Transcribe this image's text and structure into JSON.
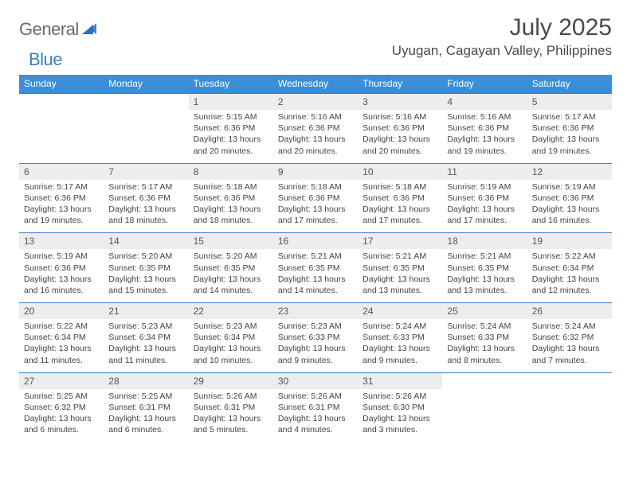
{
  "logo": {
    "text_general": "General",
    "text_blue": "Blue",
    "mark_color": "#2d6fb8"
  },
  "title": {
    "month": "July 2025",
    "location": "Uyugan, Cagayan Valley, Philippines"
  },
  "colors": {
    "header_bg": "#3a8fd6",
    "header_text": "#ffffff",
    "daynum_bg": "#eceded",
    "row_divider": "#3a7fc4",
    "body_text": "#444444"
  },
  "day_names": [
    "Sunday",
    "Monday",
    "Tuesday",
    "Wednesday",
    "Thursday",
    "Friday",
    "Saturday"
  ],
  "weeks": [
    [
      null,
      null,
      {
        "n": "1",
        "sr": "5:15 AM",
        "ss": "6:36 PM",
        "dl": "13 hours and 20 minutes."
      },
      {
        "n": "2",
        "sr": "5:16 AM",
        "ss": "6:36 PM",
        "dl": "13 hours and 20 minutes."
      },
      {
        "n": "3",
        "sr": "5:16 AM",
        "ss": "6:36 PM",
        "dl": "13 hours and 20 minutes."
      },
      {
        "n": "4",
        "sr": "5:16 AM",
        "ss": "6:36 PM",
        "dl": "13 hours and 19 minutes."
      },
      {
        "n": "5",
        "sr": "5:17 AM",
        "ss": "6:36 PM",
        "dl": "13 hours and 19 minutes."
      }
    ],
    [
      {
        "n": "6",
        "sr": "5:17 AM",
        "ss": "6:36 PM",
        "dl": "13 hours and 19 minutes."
      },
      {
        "n": "7",
        "sr": "5:17 AM",
        "ss": "6:36 PM",
        "dl": "13 hours and 18 minutes."
      },
      {
        "n": "8",
        "sr": "5:18 AM",
        "ss": "6:36 PM",
        "dl": "13 hours and 18 minutes."
      },
      {
        "n": "9",
        "sr": "5:18 AM",
        "ss": "6:36 PM",
        "dl": "13 hours and 17 minutes."
      },
      {
        "n": "10",
        "sr": "5:18 AM",
        "ss": "6:36 PM",
        "dl": "13 hours and 17 minutes."
      },
      {
        "n": "11",
        "sr": "5:19 AM",
        "ss": "6:36 PM",
        "dl": "13 hours and 17 minutes."
      },
      {
        "n": "12",
        "sr": "5:19 AM",
        "ss": "6:36 PM",
        "dl": "13 hours and 16 minutes."
      }
    ],
    [
      {
        "n": "13",
        "sr": "5:19 AM",
        "ss": "6:36 PM",
        "dl": "13 hours and 16 minutes."
      },
      {
        "n": "14",
        "sr": "5:20 AM",
        "ss": "6:35 PM",
        "dl": "13 hours and 15 minutes."
      },
      {
        "n": "15",
        "sr": "5:20 AM",
        "ss": "6:35 PM",
        "dl": "13 hours and 14 minutes."
      },
      {
        "n": "16",
        "sr": "5:21 AM",
        "ss": "6:35 PM",
        "dl": "13 hours and 14 minutes."
      },
      {
        "n": "17",
        "sr": "5:21 AM",
        "ss": "6:35 PM",
        "dl": "13 hours and 13 minutes."
      },
      {
        "n": "18",
        "sr": "5:21 AM",
        "ss": "6:35 PM",
        "dl": "13 hours and 13 minutes."
      },
      {
        "n": "19",
        "sr": "5:22 AM",
        "ss": "6:34 PM",
        "dl": "13 hours and 12 minutes."
      }
    ],
    [
      {
        "n": "20",
        "sr": "5:22 AM",
        "ss": "6:34 PM",
        "dl": "13 hours and 11 minutes."
      },
      {
        "n": "21",
        "sr": "5:23 AM",
        "ss": "6:34 PM",
        "dl": "13 hours and 11 minutes."
      },
      {
        "n": "22",
        "sr": "5:23 AM",
        "ss": "6:34 PM",
        "dl": "13 hours and 10 minutes."
      },
      {
        "n": "23",
        "sr": "5:23 AM",
        "ss": "6:33 PM",
        "dl": "13 hours and 9 minutes."
      },
      {
        "n": "24",
        "sr": "5:24 AM",
        "ss": "6:33 PM",
        "dl": "13 hours and 9 minutes."
      },
      {
        "n": "25",
        "sr": "5:24 AM",
        "ss": "6:33 PM",
        "dl": "13 hours and 8 minutes."
      },
      {
        "n": "26",
        "sr": "5:24 AM",
        "ss": "6:32 PM",
        "dl": "13 hours and 7 minutes."
      }
    ],
    [
      {
        "n": "27",
        "sr": "5:25 AM",
        "ss": "6:32 PM",
        "dl": "13 hours and 6 minutes."
      },
      {
        "n": "28",
        "sr": "5:25 AM",
        "ss": "6:31 PM",
        "dl": "13 hours and 6 minutes."
      },
      {
        "n": "29",
        "sr": "5:26 AM",
        "ss": "6:31 PM",
        "dl": "13 hours and 5 minutes."
      },
      {
        "n": "30",
        "sr": "5:26 AM",
        "ss": "6:31 PM",
        "dl": "13 hours and 4 minutes."
      },
      {
        "n": "31",
        "sr": "5:26 AM",
        "ss": "6:30 PM",
        "dl": "13 hours and 3 minutes."
      },
      null,
      null
    ]
  ],
  "labels": {
    "sunrise": "Sunrise:",
    "sunset": "Sunset:",
    "daylight": "Daylight:"
  }
}
